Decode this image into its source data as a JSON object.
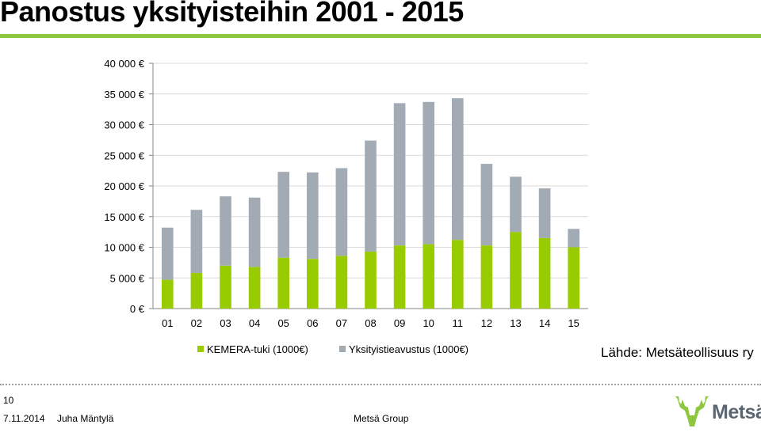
{
  "slide": {
    "title": "Panostus yksityisteihin 2001 - 2015",
    "source": "Lähde: Metsäteollisuus ry",
    "page_number": "10",
    "date": "7.11.2014",
    "author": "Juha Mäntylä",
    "company": "Metsä Group",
    "logo_text": "Metsä",
    "colors": {
      "accent": "#8dc63f",
      "logo_green": "#8dc63f",
      "logo_text": "#5a6670"
    }
  },
  "chart_data": {
    "type": "bar",
    "stacked": true,
    "title": "",
    "xlabel": "",
    "ylabel": "",
    "categories": [
      "01",
      "02",
      "03",
      "04",
      "05",
      "06",
      "07",
      "08",
      "09",
      "10",
      "11",
      "12",
      "13",
      "14",
      "15"
    ],
    "y_ticks": [
      "0 €",
      "5 000 €",
      "10 000 €",
      "15 000 €",
      "20 000 €",
      "25 000 €",
      "30 000 €",
      "35 000 €",
      "40 000 €"
    ],
    "ylim": [
      0,
      40000
    ],
    "grid": true,
    "legend_position": "bottom",
    "series": [
      {
        "name": "KEMERA-tuki (1000€)",
        "color": "#99cc00",
        "values": [
          4700,
          5800,
          7000,
          6800,
          8300,
          8100,
          8600,
          9300,
          10300,
          10500,
          11200,
          10300,
          12500,
          11500,
          10000
        ]
      },
      {
        "name": "Yksityistieavustus (1000€)",
        "color": "#a2abb3",
        "values": [
          8500,
          10300,
          11300,
          11300,
          14000,
          14100,
          14300,
          18100,
          23200,
          23200,
          23100,
          13300,
          9000,
          8100,
          3000
        ]
      }
    ]
  }
}
